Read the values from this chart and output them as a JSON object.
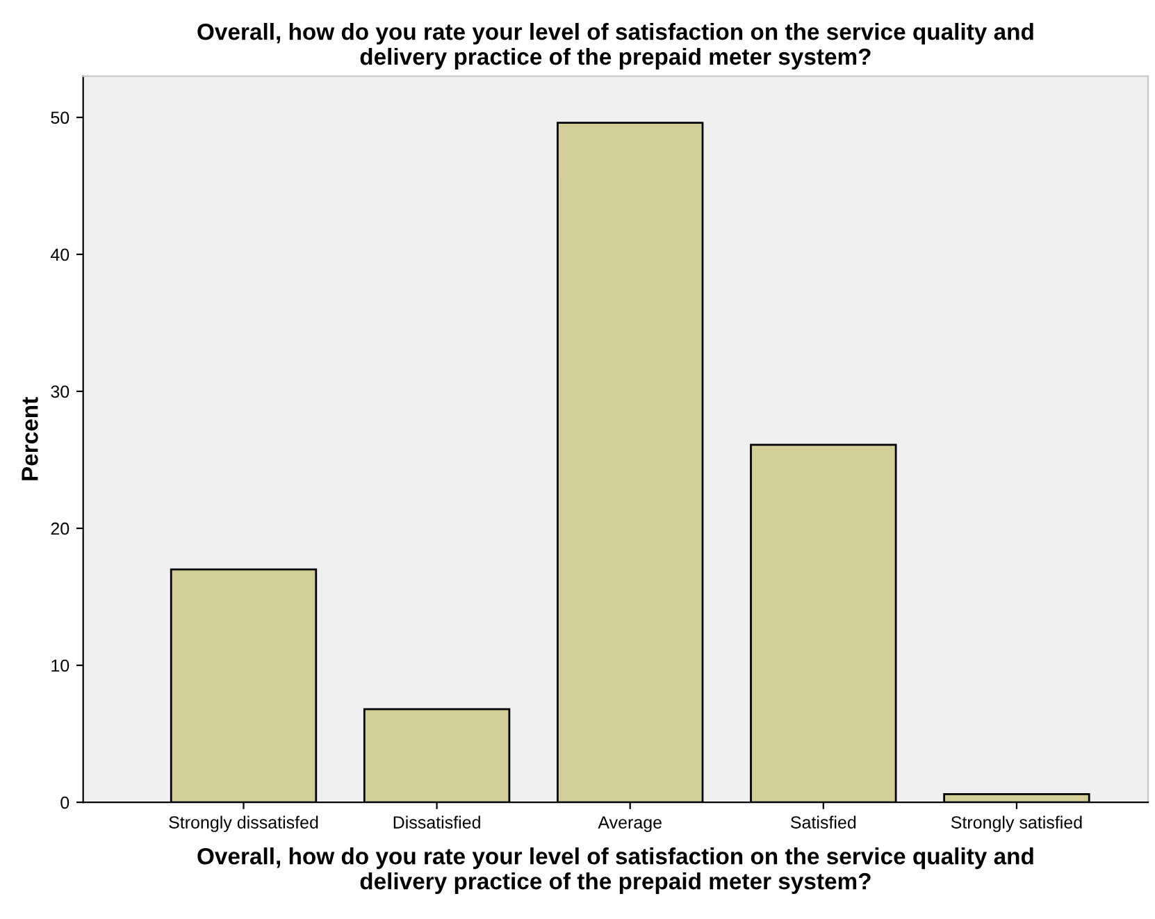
{
  "chart_data": {
    "type": "bar",
    "title": "Overall, how do you rate your level of satisfaction on the service quality and\ndelivery practice of the prepaid meter system?",
    "xlabel": "Overall, how do you rate your level of satisfaction on the service quality and\ndelivery practice of the prepaid meter system?",
    "ylabel": "Percent",
    "categories": [
      "Strongly dissatisfed",
      "Dissatisfied",
      "Average",
      "Satisfied",
      "Strongly satisfied"
    ],
    "values": [
      17.0,
      6.8,
      49.6,
      26.1,
      0.6
    ],
    "color": "#d3ce97",
    "ylim": [
      0,
      53
    ],
    "yticks": [
      0,
      10,
      20,
      30,
      40,
      50
    ],
    "grid": false
  }
}
